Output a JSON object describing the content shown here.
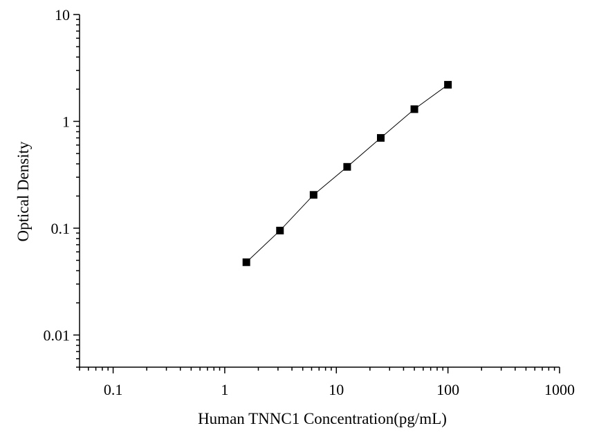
{
  "chart_data": {
    "type": "scatter",
    "xlabel": "Human TNNC1 Concentration(pg/mL)",
    "ylabel": "Optical Density",
    "x_scale": "log",
    "y_scale": "log",
    "xlim": [
      0.05,
      1000
    ],
    "ylim": [
      0.005,
      10
    ],
    "x_ticks": [
      {
        "value": 0.1,
        "label": "0.1"
      },
      {
        "value": 1,
        "label": "1"
      },
      {
        "value": 10,
        "label": "10"
      },
      {
        "value": 100,
        "label": "100"
      },
      {
        "value": 1000,
        "label": "1000"
      }
    ],
    "y_ticks": [
      {
        "value": 0.01,
        "label": "0.01"
      },
      {
        "value": 0.1,
        "label": "0.1"
      },
      {
        "value": 1,
        "label": "1"
      },
      {
        "value": 10,
        "label": "10"
      }
    ],
    "grid": false,
    "legend": "none",
    "colors": {
      "marker": "#000000",
      "line": "#000000",
      "axis": "#000000"
    },
    "series": [
      {
        "marker": "square",
        "connected": true,
        "points": [
          {
            "x": 1.5625,
            "y": 0.048
          },
          {
            "x": 3.125,
            "y": 0.095
          },
          {
            "x": 6.25,
            "y": 0.205
          },
          {
            "x": 12.5,
            "y": 0.375
          },
          {
            "x": 25,
            "y": 0.7
          },
          {
            "x": 50,
            "y": 1.3
          },
          {
            "x": 100,
            "y": 2.2
          }
        ]
      }
    ]
  }
}
